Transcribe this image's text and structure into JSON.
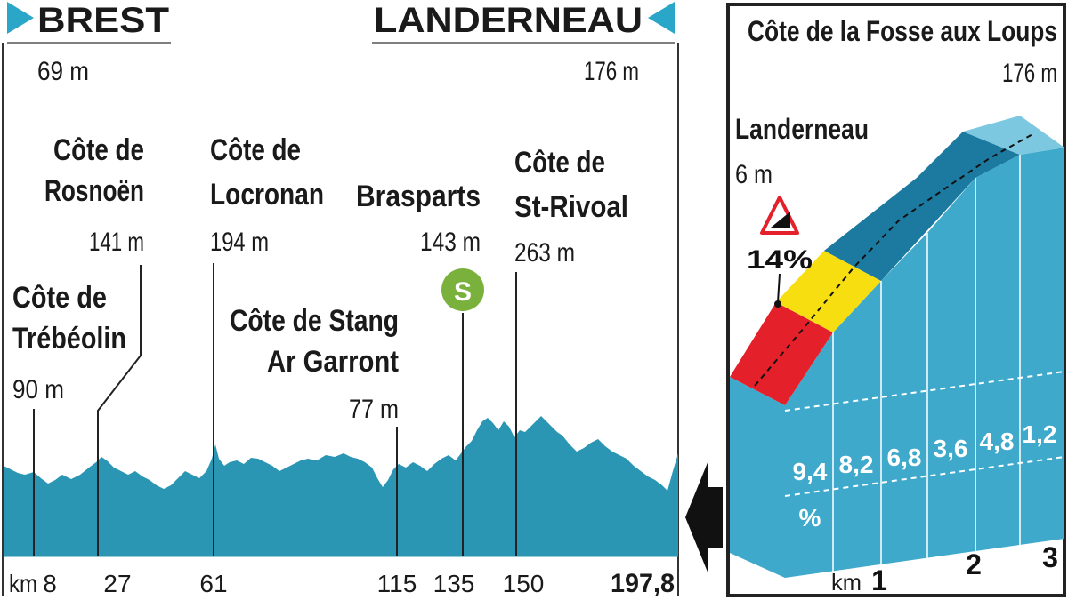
{
  "chart_data": [
    {
      "type": "area",
      "start": {
        "name": "BREST",
        "altitude": "69 m"
      },
      "finish": {
        "name": "LANDERNEAU",
        "altitude": "176 m"
      },
      "distance_label": "197,8",
      "km_unit": "km",
      "ticks": [
        "8",
        "27",
        "61",
        "115",
        "135",
        "150"
      ],
      "points_of_interest": [
        {
          "km": 8,
          "name_lines": [
            "Côte de",
            "Trébéolin"
          ],
          "altitude": "90 m"
        },
        {
          "km": 27,
          "name_lines": [
            "Côte de",
            "Rosnoën"
          ],
          "altitude": "141 m"
        },
        {
          "km": 61,
          "name_lines": [
            "Côte de",
            "Locronan"
          ],
          "altitude": "194 m"
        },
        {
          "km": 115,
          "name_lines": [
            "Côte de Stang",
            "Ar Garront"
          ],
          "altitude": "77 m"
        },
        {
          "km": 135,
          "name_lines": [
            "Brasparts"
          ],
          "altitude": "143 m",
          "badge": "S"
        },
        {
          "km": 150,
          "name_lines": [
            "Côte de",
            "St-Rivoal"
          ],
          "altitude": "263 m"
        }
      ],
      "colors": {
        "profile": "#2a96b4",
        "badge": "#7ab13c",
        "accent": "#2aa6c8"
      }
    },
    {
      "type": "bar",
      "title": "Côte de la Fosse aux Loups",
      "top_altitude": "176 m",
      "start": {
        "name": "Landerneau",
        "altitude": "6 m"
      },
      "max_gradient": "14%",
      "categories": [
        "0-0.5",
        "0.5-1",
        "1-1.5",
        "1.5-2",
        "2-2.5",
        "2.5-3"
      ],
      "gradient_labels": [
        "9,4",
        "8,2",
        "6,8",
        "3,6",
        "4,8",
        "1,2"
      ],
      "gradient_unit": "%",
      "values": [
        9.4,
        8.2,
        6.8,
        3.6,
        4.8,
        1.2
      ],
      "km_unit": "km",
      "km_ticks": [
        "1",
        "2",
        "3"
      ],
      "colors": {
        "red": "#e4202a",
        "yellow": "#f7de10",
        "dark_blue": "#1c7aa0",
        "light_blue": "#3fa9cc"
      }
    }
  ]
}
